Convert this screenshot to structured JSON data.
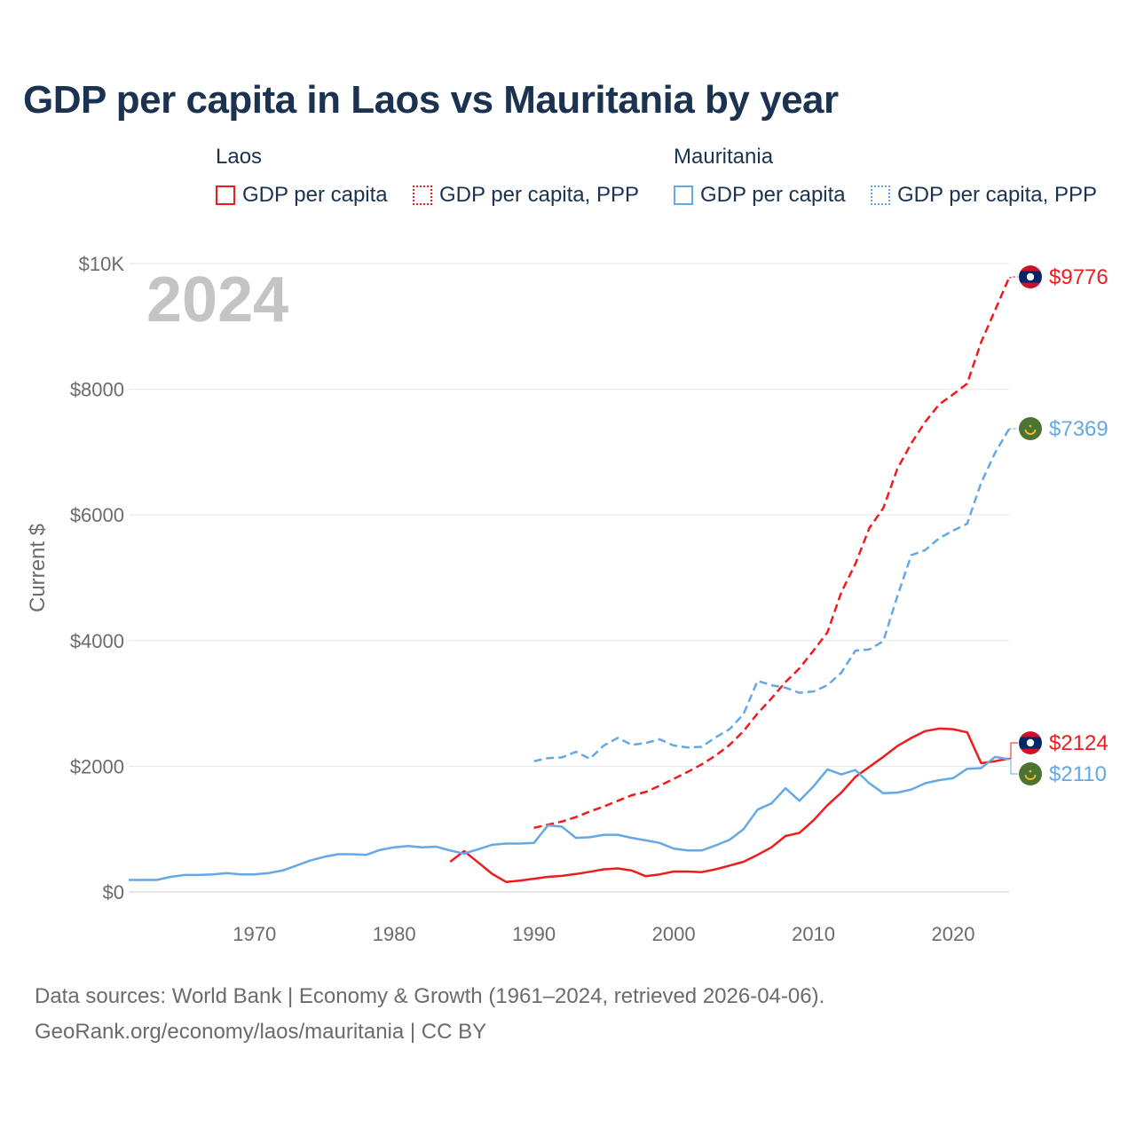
{
  "colors": {
    "laos": "#ee1c1c",
    "mauritania": "#64a8e6",
    "title": "#1b3350"
  },
  "legend": {
    "groups": [
      {
        "name": "Laos",
        "items": [
          "GDP per capita",
          "GDP per capita, PPP"
        ]
      },
      {
        "name": "Mauritania",
        "items": [
          "GDP per capita",
          "GDP per capita, PPP"
        ]
      }
    ]
  },
  "flags": {
    "laos": "laos-flag-icon",
    "mauritania": "mauritania-flag-icon"
  },
  "footer": {
    "line1": "Data sources: World Bank | Economy & Growth (1961–2024, retrieved 2026-04-06).",
    "line2": "GeoRank.org/economy/laos/mauritania | CC BY"
  },
  "chart_data": {
    "type": "line",
    "title": "GDP per capita in Laos vs Mauritania by year",
    "ylabel": "Current $",
    "year_label": "2024",
    "xlim": [
      1961,
      2024
    ],
    "ylim": [
      0,
      10000
    ],
    "x_ticks": [
      1970,
      1980,
      1990,
      2000,
      2010,
      2020
    ],
    "y_ticks": [
      {
        "value": 0,
        "label": "$0"
      },
      {
        "value": 2000,
        "label": "$2000"
      },
      {
        "value": 4000,
        "label": "$4000"
      },
      {
        "value": 6000,
        "label": "$6000"
      },
      {
        "value": 8000,
        "label": "$8000"
      },
      {
        "value": 10000,
        "label": "$10K"
      }
    ],
    "series": [
      {
        "name": "Laos GDP per capita",
        "country": "laos",
        "style": "solid",
        "end_label": "$2124",
        "points": [
          [
            1984,
            480
          ],
          [
            1985,
            650
          ],
          [
            1986,
            470
          ],
          [
            1987,
            290
          ],
          [
            1988,
            160
          ],
          [
            1989,
            180
          ],
          [
            1990,
            210
          ],
          [
            1991,
            240
          ],
          [
            1992,
            255
          ],
          [
            1993,
            285
          ],
          [
            1994,
            320
          ],
          [
            1995,
            360
          ],
          [
            1996,
            375
          ],
          [
            1997,
            340
          ],
          [
            1998,
            250
          ],
          [
            1999,
            280
          ],
          [
            2000,
            325
          ],
          [
            2001,
            325
          ],
          [
            2002,
            315
          ],
          [
            2003,
            360
          ],
          [
            2004,
            420
          ],
          [
            2005,
            480
          ],
          [
            2006,
            590
          ],
          [
            2007,
            710
          ],
          [
            2008,
            890
          ],
          [
            2009,
            940
          ],
          [
            2010,
            1140
          ],
          [
            2011,
            1380
          ],
          [
            2012,
            1580
          ],
          [
            2013,
            1830
          ],
          [
            2014,
            1990
          ],
          [
            2015,
            2150
          ],
          [
            2016,
            2320
          ],
          [
            2017,
            2450
          ],
          [
            2018,
            2560
          ],
          [
            2019,
            2600
          ],
          [
            2020,
            2590
          ],
          [
            2021,
            2540
          ],
          [
            2022,
            2050
          ],
          [
            2023,
            2080
          ],
          [
            2024,
            2124
          ]
        ]
      },
      {
        "name": "Laos GDP per capita, PPP",
        "country": "laos",
        "style": "dashed",
        "end_label": "$9776",
        "points": [
          [
            1990,
            1020
          ],
          [
            1991,
            1070
          ],
          [
            1992,
            1120
          ],
          [
            1993,
            1190
          ],
          [
            1994,
            1280
          ],
          [
            1995,
            1360
          ],
          [
            1996,
            1450
          ],
          [
            1997,
            1540
          ],
          [
            1998,
            1590
          ],
          [
            1999,
            1690
          ],
          [
            2000,
            1800
          ],
          [
            2001,
            1910
          ],
          [
            2002,
            2030
          ],
          [
            2003,
            2170
          ],
          [
            2004,
            2340
          ],
          [
            2005,
            2560
          ],
          [
            2006,
            2840
          ],
          [
            2007,
            3080
          ],
          [
            2008,
            3340
          ],
          [
            2009,
            3560
          ],
          [
            2010,
            3840
          ],
          [
            2011,
            4130
          ],
          [
            2012,
            4770
          ],
          [
            2013,
            5220
          ],
          [
            2014,
            5790
          ],
          [
            2015,
            6110
          ],
          [
            2016,
            6730
          ],
          [
            2017,
            7140
          ],
          [
            2018,
            7480
          ],
          [
            2019,
            7760
          ],
          [
            2020,
            7920
          ],
          [
            2021,
            8090
          ],
          [
            2022,
            8750
          ],
          [
            2023,
            9260
          ],
          [
            2024,
            9776
          ]
        ]
      },
      {
        "name": "Mauritania GDP per capita",
        "country": "mauritania",
        "style": "solid",
        "end_label": "$2110",
        "points": [
          [
            1961,
            190
          ],
          [
            1962,
            190
          ],
          [
            1963,
            190
          ],
          [
            1964,
            240
          ],
          [
            1965,
            270
          ],
          [
            1966,
            270
          ],
          [
            1967,
            280
          ],
          [
            1968,
            300
          ],
          [
            1969,
            280
          ],
          [
            1970,
            280
          ],
          [
            1971,
            300
          ],
          [
            1972,
            340
          ],
          [
            1973,
            420
          ],
          [
            1974,
            500
          ],
          [
            1975,
            560
          ],
          [
            1976,
            600
          ],
          [
            1977,
            600
          ],
          [
            1978,
            590
          ],
          [
            1979,
            670
          ],
          [
            1980,
            710
          ],
          [
            1981,
            730
          ],
          [
            1982,
            710
          ],
          [
            1983,
            720
          ],
          [
            1984,
            660
          ],
          [
            1985,
            610
          ],
          [
            1986,
            680
          ],
          [
            1987,
            750
          ],
          [
            1988,
            770
          ],
          [
            1989,
            770
          ],
          [
            1990,
            780
          ],
          [
            1991,
            1060
          ],
          [
            1992,
            1040
          ],
          [
            1993,
            860
          ],
          [
            1994,
            870
          ],
          [
            1995,
            910
          ],
          [
            1996,
            910
          ],
          [
            1997,
            860
          ],
          [
            1998,
            820
          ],
          [
            1999,
            780
          ],
          [
            2000,
            690
          ],
          [
            2001,
            660
          ],
          [
            2002,
            660
          ],
          [
            2003,
            740
          ],
          [
            2004,
            830
          ],
          [
            2005,
            1000
          ],
          [
            2006,
            1310
          ],
          [
            2007,
            1410
          ],
          [
            2008,
            1650
          ],
          [
            2009,
            1450
          ],
          [
            2010,
            1680
          ],
          [
            2011,
            1950
          ],
          [
            2012,
            1870
          ],
          [
            2013,
            1940
          ],
          [
            2014,
            1730
          ],
          [
            2015,
            1570
          ],
          [
            2016,
            1580
          ],
          [
            2017,
            1630
          ],
          [
            2018,
            1730
          ],
          [
            2019,
            1780
          ],
          [
            2020,
            1810
          ],
          [
            2021,
            1960
          ],
          [
            2022,
            1970
          ],
          [
            2023,
            2150
          ],
          [
            2024,
            2110
          ]
        ]
      },
      {
        "name": "Mauritania GDP per capita, PPP",
        "country": "mauritania",
        "style": "dashed",
        "end_label": "$7369",
        "points": [
          [
            1990,
            2080
          ],
          [
            1991,
            2130
          ],
          [
            1992,
            2140
          ],
          [
            1993,
            2230
          ],
          [
            1994,
            2120
          ],
          [
            1995,
            2330
          ],
          [
            1996,
            2450
          ],
          [
            1997,
            2340
          ],
          [
            1998,
            2370
          ],
          [
            1999,
            2430
          ],
          [
            2000,
            2330
          ],
          [
            2001,
            2300
          ],
          [
            2002,
            2310
          ],
          [
            2003,
            2460
          ],
          [
            2004,
            2590
          ],
          [
            2005,
            2830
          ],
          [
            2006,
            3360
          ],
          [
            2007,
            3290
          ],
          [
            2008,
            3250
          ],
          [
            2009,
            3170
          ],
          [
            2010,
            3190
          ],
          [
            2011,
            3290
          ],
          [
            2012,
            3490
          ],
          [
            2013,
            3840
          ],
          [
            2014,
            3860
          ],
          [
            2015,
            3990
          ],
          [
            2016,
            4700
          ],
          [
            2017,
            5360
          ],
          [
            2018,
            5440
          ],
          [
            2019,
            5630
          ],
          [
            2020,
            5750
          ],
          [
            2021,
            5860
          ],
          [
            2022,
            6510
          ],
          [
            2023,
            6990
          ],
          [
            2024,
            7369
          ]
        ]
      }
    ]
  }
}
